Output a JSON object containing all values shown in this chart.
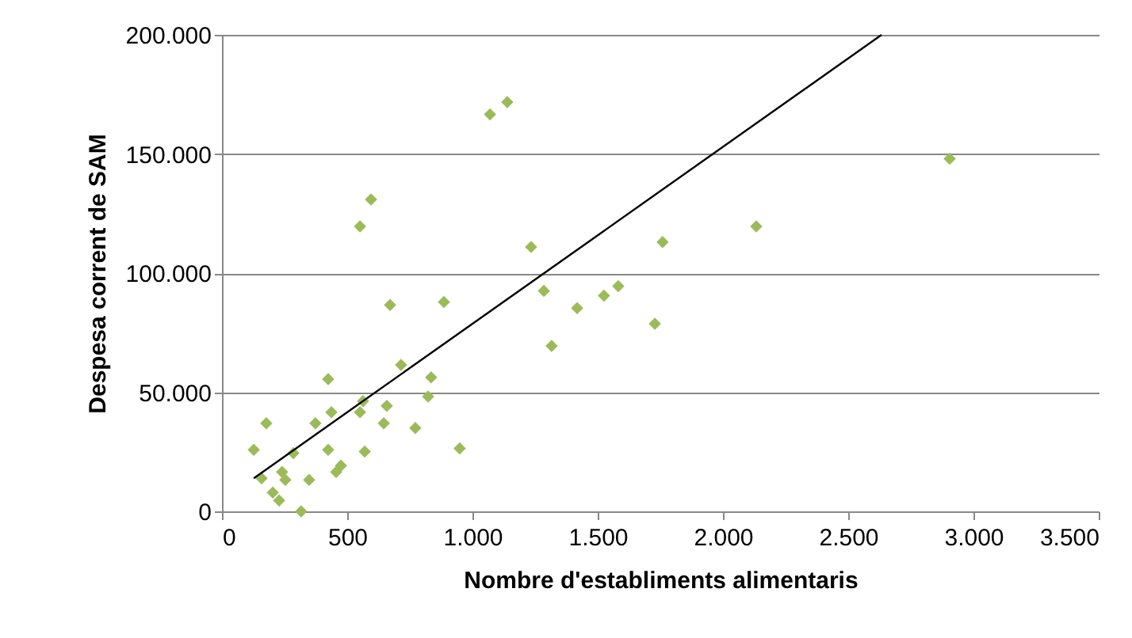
{
  "chart_data": {
    "type": "scatter",
    "xlabel": "Nombre d'establiments alimentaris",
    "ylabel": "Despesa corrent de SAM",
    "xlim": [
      0,
      3500
    ],
    "ylim": [
      0,
      200000
    ],
    "xticks": [
      0,
      500,
      {
        "value": 1000,
        "label": "1.000"
      },
      {
        "value": 1500,
        "label": "1.500"
      },
      {
        "value": 2000,
        "label": "2.000"
      },
      {
        "value": 2500,
        "label": "2.500"
      },
      {
        "value": 3000,
        "label": "3.000"
      },
      {
        "value": 3500,
        "label": "3.500"
      }
    ],
    "yticks": [
      0,
      {
        "value": 50000,
        "label": "50.000"
      },
      {
        "value": 100000,
        "label": "100.000"
      },
      {
        "value": 150000,
        "label": "150.000"
      },
      {
        "value": 200000,
        "label": "200.000"
      }
    ],
    "grid": "y",
    "marker": "diamond",
    "series": [
      {
        "color": "#9bbb59",
        "x": [
          127,
          177,
          158,
          203,
          228,
          240,
          253,
          285,
          316,
          348,
          373,
          424,
          424,
          437,
          456,
          475,
          551,
          595,
          551,
          563,
          570,
          658,
          646,
          671,
          715,
          772,
          823,
          835,
          886,
          949,
          1070,
          1139,
          1234,
          1285,
          1316,
          1418,
          1525,
          1582,
          1728,
          1759,
          2133,
          2905
        ],
        "values": [
          25800,
          37000,
          13900,
          7900,
          4600,
          16500,
          13200,
          24400,
          0,
          13200,
          37000,
          55500,
          25800,
          41600,
          16500,
          19200,
          119600,
          130900,
          41600,
          46300,
          25100,
          44300,
          37000,
          86600,
          61500,
          35000,
          48200,
          56200,
          87900,
          26400,
          166600,
          171800,
          111000,
          92500,
          69400,
          85300,
          90500,
          94500,
          78700,
          113000,
          119600,
          148000
        ]
      },
      {
        "type": "line",
        "color": "#000000",
        "marker": "none",
        "x": [
          127,
          2633
        ],
        "values": [
          13900,
          200000
        ]
      }
    ]
  }
}
